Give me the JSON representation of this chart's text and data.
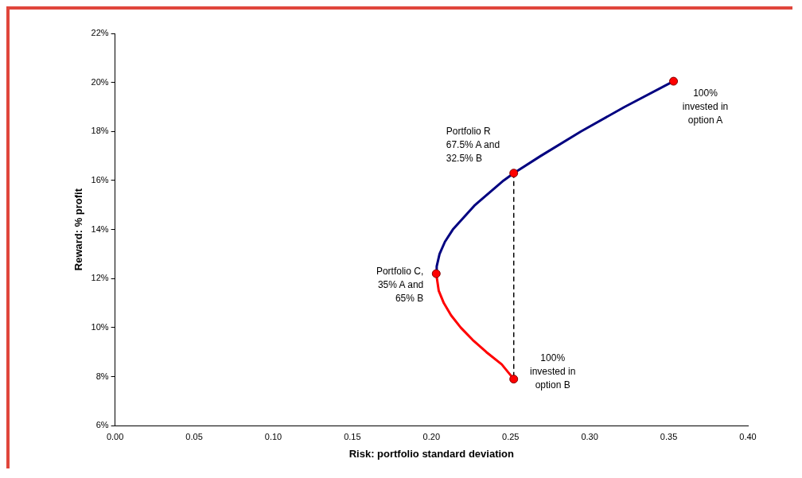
{
  "chart_data": {
    "type": "line",
    "xlabel": "Risk: portfolio standard deviation",
    "ylabel": "Reward: % profit",
    "xlim": [
      0,
      0.4
    ],
    "xticks": [
      {
        "value": 0,
        "label": "0.00"
      },
      {
        "value": 0.05,
        "label": "0.05"
      },
      {
        "value": 0.1,
        "label": "0.10"
      },
      {
        "value": 0.15,
        "label": "0.15"
      },
      {
        "value": 0.2,
        "label": "0.20"
      },
      {
        "value": 0.25,
        "label": "0.25"
      },
      {
        "value": 0.3,
        "label": "0.30"
      },
      {
        "value": 0.35,
        "label": "0.35"
      },
      {
        "value": 0.4,
        "label": "0.40"
      }
    ],
    "ylim": [
      6,
      22
    ],
    "yticks": [
      {
        "value": 6,
        "label": "6%"
      },
      {
        "value": 8,
        "label": "8%"
      },
      {
        "value": 10,
        "label": "10%"
      },
      {
        "value": 12,
        "label": "12%"
      },
      {
        "value": 14,
        "label": "14%"
      },
      {
        "value": 16,
        "label": "16%"
      },
      {
        "value": 18,
        "label": "18%"
      },
      {
        "value": 20,
        "label": "20%"
      },
      {
        "value": 22,
        "label": "22%"
      }
    ],
    "grid": false,
    "legend": false,
    "series": [
      {
        "color": "#000080",
        "marker": "none",
        "line_style": "solid",
        "x": [
          0.203,
          0.2033,
          0.2051,
          0.2085,
          0.2135,
          0.2275,
          0.2456,
          0.252,
          0.269,
          0.2945,
          0.322,
          0.353
        ],
        "values": [
          12.2,
          12.5,
          13,
          13.5,
          14,
          15,
          16,
          16.3,
          17,
          18,
          19,
          20.05
        ]
      },
      {
        "color": "#ff0000",
        "marker": "none",
        "line_style": "solid",
        "x": [
          0.252,
          0.2444,
          0.2347,
          0.226,
          0.2185,
          0.2124,
          0.2078,
          0.2046,
          0.203
        ],
        "values": [
          7.9,
          8.5,
          9,
          9.5,
          10,
          10.5,
          11,
          11.5,
          12.2
        ]
      },
      {
        "color": "#000000",
        "marker": "none",
        "line_style": "dashed",
        "x": [
          0.252,
          0.252
        ],
        "values": [
          16.3,
          7.9
        ]
      },
      {
        "type": "scatter",
        "color": "#ff0000",
        "marker": "circle",
        "x": [
          0.203,
          0.252,
          0.353,
          0.252
        ],
        "values": [
          12.2,
          16.3,
          20.05,
          7.9
        ]
      }
    ],
    "annotations": [
      {
        "text": "Portfolio C,\n35% A and\n65% B",
        "x": 0.203,
        "y": 12.2
      },
      {
        "text": "Portfolio R\n67.5% A and\n32.5% B",
        "x": 0.252,
        "y": 16.3
      },
      {
        "text": "100%\ninvested in\noption A",
        "x": 0.353,
        "y": 20.05
      },
      {
        "text": "100%\ninvested in\noption B",
        "x": 0.252,
        "y": 7.9
      }
    ]
  }
}
